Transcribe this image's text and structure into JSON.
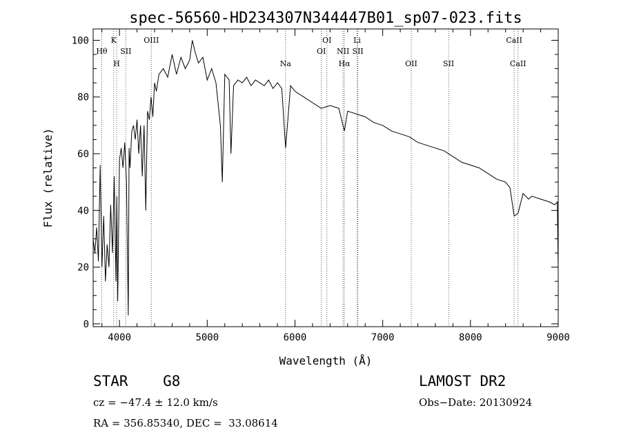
{
  "chart_data": {
    "type": "line",
    "title": "spec-56560-HD234307N344447B01_sp07-023.fits",
    "xlabel": "Wavelength (Å)",
    "ylabel": "Flux (relative)",
    "xlim": [
      3700,
      9000
    ],
    "ylim": [
      -1,
      104
    ],
    "xticks": [
      4000,
      5000,
      6000,
      7000,
      8000,
      9000
    ],
    "yticks": [
      0,
      20,
      40,
      60,
      80,
      100
    ],
    "grid": false,
    "lines": [
      {
        "name": "Hθ",
        "wavelength": 3798,
        "label_row": 1
      },
      {
        "name": "K",
        "wavelength": 3934,
        "label_row": 0
      },
      {
        "name": "H",
        "wavelength": 3968,
        "label_row": 2
      },
      {
        "name": "SII",
        "wavelength": 4072,
        "label_row": 1
      },
      {
        "name": "OIII",
        "wavelength": 4363,
        "label_row": 0
      },
      {
        "name": "Na",
        "wavelength": 5893,
        "label_row": 2
      },
      {
        "name": "OI",
        "wavelength": 6300,
        "label_row": 1
      },
      {
        "name": "OI",
        "wavelength": 6364,
        "label_row": 0
      },
      {
        "name": "NII",
        "wavelength": 6548,
        "label_row": 1
      },
      {
        "name": "Hα",
        "wavelength": 6563,
        "label_row": 2
      },
      {
        "name": "Li",
        "wavelength": 6708,
        "label_row": 0
      },
      {
        "name": "SII",
        "wavelength": 6717,
        "label_row": 1
      },
      {
        "name": "OII",
        "wavelength": 7325,
        "label_row": 2
      },
      {
        "name": "SII",
        "wavelength": 7751,
        "label_row": 2
      },
      {
        "name": "CaII",
        "wavelength": 8498,
        "label_row": 0
      },
      {
        "name": "CaII",
        "wavelength": 8542,
        "label_row": 2
      }
    ],
    "series": [
      {
        "x": [
          3700,
          3720,
          3740,
          3760,
          3780,
          3800,
          3820,
          3840,
          3860,
          3880,
          3900,
          3920,
          3940,
          3960,
          3970,
          3980,
          4000,
          4020,
          4040,
          4060,
          4080,
          4100,
          4110,
          4120,
          4140,
          4160,
          4180,
          4200,
          4220,
          4240,
          4260,
          4280,
          4300,
          4320,
          4340,
          4360,
          4380,
          4400,
          4420,
          4450,
          4500,
          4550,
          4600,
          4650,
          4700,
          4750,
          4800,
          4830,
          4861,
          4900,
          4950,
          5000,
          5050,
          5100,
          5150,
          5172,
          5200,
          5250,
          5270,
          5300,
          5350,
          5400,
          5450,
          5500,
          5550,
          5600,
          5650,
          5700,
          5750,
          5800,
          5850,
          5893,
          5950,
          6000,
          6100,
          6200,
          6300,
          6400,
          6500,
          6563,
          6600,
          6700,
          6800,
          6900,
          7000,
          7100,
          7200,
          7300,
          7400,
          7500,
          7600,
          7700,
          7800,
          7900,
          8000,
          8100,
          8200,
          8300,
          8400,
          8450,
          8498,
          8542,
          8600,
          8662,
          8700,
          8800,
          8900,
          8960,
          8990,
          9000
        ],
        "y": [
          30,
          25,
          34,
          22,
          56,
          20,
          38,
          15,
          28,
          20,
          42,
          25,
          52,
          15,
          45,
          8,
          58,
          62,
          55,
          64,
          50,
          3,
          62,
          55,
          68,
          70,
          65,
          72,
          60,
          70,
          52,
          70,
          40,
          75,
          72,
          80,
          73,
          85,
          82,
          88,
          90,
          87,
          95,
          88,
          94,
          90,
          93,
          100,
          96,
          92,
          94,
          86,
          90,
          85,
          70,
          50,
          88,
          86,
          60,
          84,
          86,
          85,
          87,
          84,
          86,
          85,
          84,
          86,
          83,
          85,
          83,
          62,
          84,
          82,
          80,
          78,
          76,
          77,
          76,
          68,
          75,
          74,
          73,
          71,
          70,
          68,
          67,
          66,
          64,
          63,
          62,
          61,
          59,
          57,
          56,
          55,
          53,
          51,
          50,
          48,
          38,
          39,
          46,
          44,
          45,
          44,
          43,
          42,
          43,
          20
        ]
      }
    ]
  },
  "info": {
    "object": "STAR    G8",
    "redshift": "cz = −47.4 ± 12.0 km/s",
    "coords": "RA = 356.85340, DEC =  33.08614",
    "release": "LAMOST DR2",
    "obs_date": "Obs−Date: 20130924"
  }
}
